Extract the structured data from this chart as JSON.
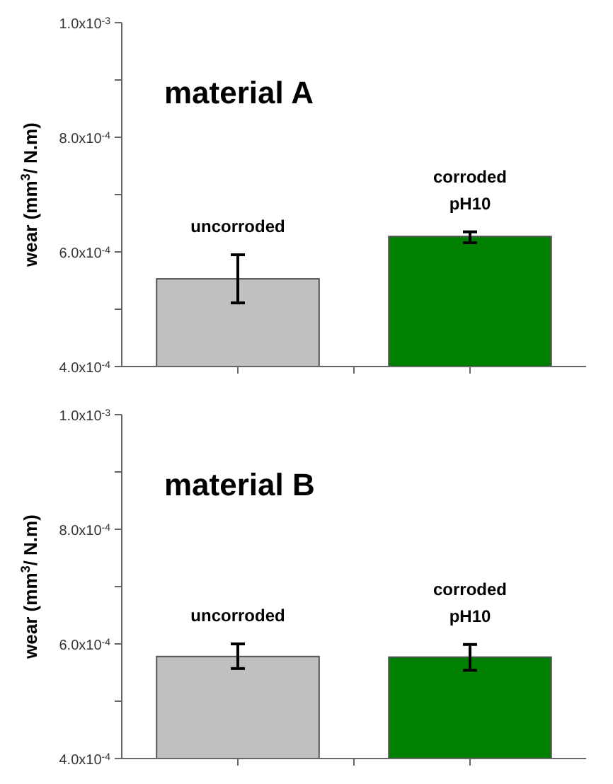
{
  "chart_data": [
    {
      "type": "bar",
      "title": "material A",
      "ylabel": "wear (mm$^{3}$/ N.m)",
      "categories": [
        "uncorroded",
        "corroded pH10"
      ],
      "values": [
        0.000553,
        0.000627
      ],
      "colors": [
        "#c0c0c0",
        "#008000"
      ],
      "errors": [
        [
          0.000511,
          0.000595
        ],
        [
          0.000616,
          0.000635
        ]
      ],
      "ylim": [
        0.0004,
        0.001
      ],
      "yticks": [
        {
          "value": 0.0004,
          "label": "4.0x10$^{-4}$"
        },
        {
          "value": 0.0005,
          "label": null
        },
        {
          "value": 0.0006,
          "label": "6.0x10$^{-4}$"
        },
        {
          "value": 0.0007,
          "label": null
        },
        {
          "value": 0.0008,
          "label": "8.0x10$^{-4}$"
        },
        {
          "value": 0.0009,
          "label": null
        },
        {
          "value": 0.001,
          "label": "1.0x10$^{-3}$"
        }
      ],
      "grid": false
    },
    {
      "type": "bar",
      "title": "material B",
      "ylabel": "wear (mm$^{3}$/ N.m)",
      "categories": [
        "uncorroded",
        "corroded pH10"
      ],
      "values": [
        0.000578,
        0.000577
      ],
      "colors": [
        "#c0c0c0",
        "#008000"
      ],
      "errors": [
        [
          0.000557,
          0.0006
        ],
        [
          0.000554,
          0.000599
        ]
      ],
      "ylim": [
        0.0004,
        0.001
      ],
      "yticks": [
        {
          "value": 0.0004,
          "label": "4.0x10$^{-4}$"
        },
        {
          "value": 0.0005,
          "label": null
        },
        {
          "value": 0.0006,
          "label": "6.0x10$^{-4}$"
        },
        {
          "value": 0.0007,
          "label": null
        },
        {
          "value": 0.0008,
          "label": "8.0x10$^{-4}$"
        },
        {
          "value": 0.0009,
          "label": null
        },
        {
          "value": 0.001,
          "label": "1.0x10$^{-3}$"
        }
      ],
      "grid": false
    }
  ]
}
